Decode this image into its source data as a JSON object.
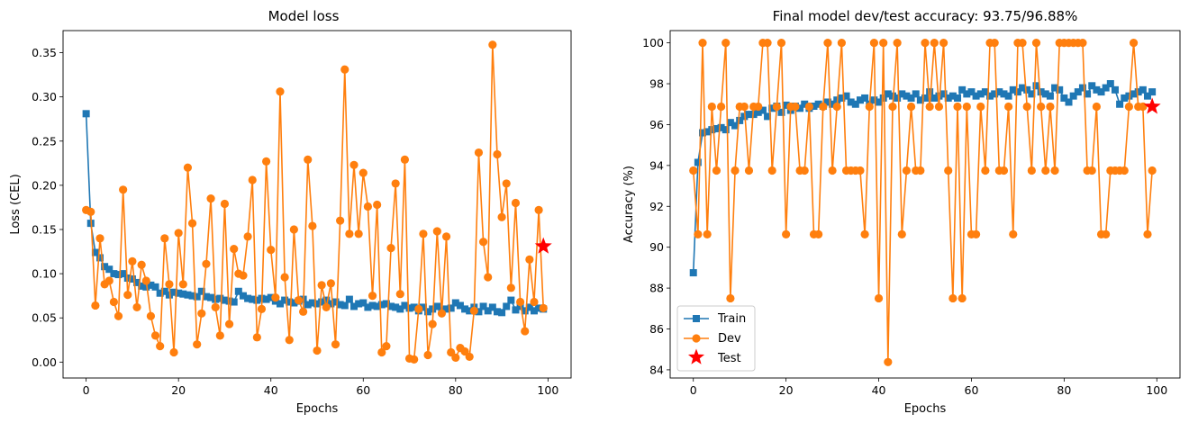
{
  "chart_data": [
    {
      "type": "line",
      "title": "Model loss",
      "xlabel": "Epochs",
      "ylabel": "Loss (CEL)",
      "xlim": [
        -5,
        105
      ],
      "ylim": [
        -0.018,
        0.375
      ],
      "xticks": [
        0,
        20,
        40,
        60,
        80,
        100
      ],
      "yticks": [
        0.0,
        0.05,
        0.1,
        0.15,
        0.2,
        0.25,
        0.3,
        0.35
      ],
      "ytick_labels": [
        "0.00",
        "0.05",
        "0.10",
        "0.15",
        "0.20",
        "0.25",
        "0.30",
        "0.35"
      ],
      "grid": false,
      "series": [
        {
          "marker": "square",
          "color": "#1f77b4",
          "x": [
            0,
            1,
            2,
            3,
            4,
            5,
            6,
            7,
            8,
            9,
            10,
            11,
            12,
            13,
            14,
            15,
            16,
            17,
            18,
            19,
            20,
            21,
            22,
            23,
            24,
            25,
            26,
            27,
            28,
            29,
            30,
            31,
            32,
            33,
            34,
            35,
            36,
            37,
            38,
            39,
            40,
            41,
            42,
            43,
            44,
            45,
            46,
            47,
            48,
            49,
            50,
            51,
            52,
            53,
            54,
            55,
            56,
            57,
            58,
            59,
            60,
            61,
            62,
            63,
            64,
            65,
            66,
            67,
            68,
            69,
            70,
            71,
            72,
            73,
            74,
            75,
            76,
            77,
            78,
            79,
            80,
            81,
            82,
            83,
            84,
            85,
            86,
            87,
            88,
            89,
            90,
            91,
            92,
            93,
            94,
            95,
            96,
            97,
            98,
            99
          ],
          "y": [
            0.281,
            0.157,
            0.124,
            0.118,
            0.108,
            0.105,
            0.1,
            0.099,
            0.1,
            0.095,
            0.094,
            0.09,
            0.086,
            0.085,
            0.087,
            0.085,
            0.078,
            0.08,
            0.076,
            0.079,
            0.078,
            0.077,
            0.076,
            0.075,
            0.074,
            0.08,
            0.074,
            0.073,
            0.071,
            0.072,
            0.07,
            0.069,
            0.068,
            0.08,
            0.075,
            0.072,
            0.071,
            0.07,
            0.072,
            0.071,
            0.073,
            0.069,
            0.066,
            0.07,
            0.068,
            0.067,
            0.069,
            0.071,
            0.065,
            0.067,
            0.066,
            0.068,
            0.07,
            0.066,
            0.068,
            0.065,
            0.064,
            0.071,
            0.063,
            0.066,
            0.067,
            0.062,
            0.064,
            0.063,
            0.065,
            0.066,
            0.063,
            0.062,
            0.06,
            0.064,
            0.061,
            0.062,
            0.058,
            0.062,
            0.057,
            0.06,
            0.063,
            0.059,
            0.06,
            0.061,
            0.067,
            0.064,
            0.06,
            0.058,
            0.062,
            0.057,
            0.063,
            0.058,
            0.062,
            0.057,
            0.056,
            0.063,
            0.07,
            0.059,
            0.063,
            0.058,
            0.062,
            0.058,
            0.061,
            0.06
          ]
        },
        {
          "marker": "circle",
          "color": "#ff7f0e",
          "x": [
            0,
            1,
            2,
            3,
            4,
            5,
            6,
            7,
            8,
            9,
            10,
            11,
            12,
            13,
            14,
            15,
            16,
            17,
            18,
            19,
            20,
            21,
            22,
            23,
            24,
            25,
            26,
            27,
            28,
            29,
            30,
            31,
            32,
            33,
            34,
            35,
            36,
            37,
            38,
            39,
            40,
            41,
            42,
            43,
            44,
            45,
            46,
            47,
            48,
            49,
            50,
            51,
            52,
            53,
            54,
            55,
            56,
            57,
            58,
            59,
            60,
            61,
            62,
            63,
            64,
            65,
            66,
            67,
            68,
            69,
            70,
            71,
            72,
            73,
            74,
            75,
            76,
            77,
            78,
            79,
            80,
            81,
            82,
            83,
            84,
            85,
            86,
            87,
            88,
            89,
            90,
            91,
            92,
            93,
            94,
            95,
            96,
            97,
            98,
            99
          ],
          "y": [
            0.172,
            0.17,
            0.064,
            0.14,
            0.088,
            0.092,
            0.068,
            0.052,
            0.195,
            0.076,
            0.114,
            0.062,
            0.11,
            0.092,
            0.052,
            0.03,
            0.018,
            0.14,
            0.088,
            0.011,
            0.146,
            0.088,
            0.22,
            0.157,
            0.02,
            0.055,
            0.111,
            0.185,
            0.062,
            0.03,
            0.179,
            0.043,
            0.128,
            0.1,
            0.098,
            0.142,
            0.206,
            0.028,
            0.06,
            0.227,
            0.127,
            0.073,
            0.306,
            0.096,
            0.025,
            0.15,
            0.07,
            0.057,
            0.229,
            0.154,
            0.013,
            0.087,
            0.062,
            0.089,
            0.02,
            0.16,
            0.331,
            0.145,
            0.223,
            0.145,
            0.214,
            0.176,
            0.075,
            0.178,
            0.011,
            0.018,
            0.129,
            0.202,
            0.077,
            0.229,
            0.004,
            0.003,
            0.06,
            0.145,
            0.008,
            0.043,
            0.148,
            0.055,
            0.142,
            0.011,
            0.005,
            0.016,
            0.012,
            0.006,
            0.058,
            0.237,
            0.136,
            0.096,
            0.359,
            0.235,
            0.164,
            0.202,
            0.084,
            0.18,
            0.068,
            0.035,
            0.116,
            0.068,
            0.172,
            0.061
          ]
        }
      ],
      "test_marker": {
        "marker": "star",
        "color": "#ff0000",
        "x": 99,
        "y": 0.131
      }
    },
    {
      "type": "line",
      "title": "Final model dev/test accuracy: 93.75/96.88%",
      "xlabel": "Epochs",
      "ylabel": "Accuracy (%)",
      "xlim": [
        -5,
        105
      ],
      "ylim": [
        83.6,
        100.6
      ],
      "xticks": [
        0,
        20,
        40,
        60,
        80,
        100
      ],
      "yticks": [
        84,
        86,
        88,
        90,
        92,
        94,
        96,
        98,
        100
      ],
      "grid": false,
      "legend_position": "lower-left",
      "legend": [
        "Train",
        "Dev",
        "Test"
      ],
      "series": [
        {
          "name": "Train",
          "marker": "square",
          "color": "#1f77b4",
          "x": [
            0,
            1,
            2,
            3,
            4,
            5,
            6,
            7,
            8,
            9,
            10,
            11,
            12,
            13,
            14,
            15,
            16,
            17,
            18,
            19,
            20,
            21,
            22,
            23,
            24,
            25,
            26,
            27,
            28,
            29,
            30,
            31,
            32,
            33,
            34,
            35,
            36,
            37,
            38,
            39,
            40,
            41,
            42,
            43,
            44,
            45,
            46,
            47,
            48,
            49,
            50,
            51,
            52,
            53,
            54,
            55,
            56,
            57,
            58,
            59,
            60,
            61,
            62,
            63,
            64,
            65,
            66,
            67,
            68,
            69,
            70,
            71,
            72,
            73,
            74,
            75,
            76,
            77,
            78,
            79,
            80,
            81,
            82,
            83,
            84,
            85,
            86,
            87,
            88,
            89,
            90,
            91,
            92,
            93,
            94,
            95,
            96,
            97,
            98,
            99
          ],
          "y": [
            88.75,
            94.15,
            95.6,
            95.65,
            95.75,
            95.8,
            95.85,
            95.75,
            96.1,
            95.95,
            96.2,
            96.4,
            96.5,
            96.5,
            96.6,
            96.7,
            96.4,
            96.8,
            96.9,
            96.6,
            96.95,
            96.7,
            96.9,
            96.8,
            97.0,
            96.8,
            96.9,
            97.0,
            96.9,
            97.1,
            97.0,
            97.2,
            97.3,
            97.4,
            97.1,
            97.0,
            97.2,
            97.3,
            97.0,
            97.2,
            97.1,
            97.3,
            97.5,
            97.4,
            97.3,
            97.5,
            97.4,
            97.3,
            97.5,
            97.2,
            97.3,
            97.6,
            97.3,
            97.4,
            97.5,
            97.3,
            97.4,
            97.3,
            97.7,
            97.5,
            97.6,
            97.4,
            97.5,
            97.6,
            97.4,
            97.5,
            97.6,
            97.5,
            97.4,
            97.7,
            97.6,
            97.8,
            97.7,
            97.5,
            97.9,
            97.6,
            97.5,
            97.4,
            97.8,
            97.7,
            97.3,
            97.1,
            97.4,
            97.6,
            97.8,
            97.5,
            97.9,
            97.7,
            97.6,
            97.8,
            98.0,
            97.7,
            97.0,
            97.3,
            97.4,
            97.5,
            97.6,
            97.7,
            97.4,
            97.6
          ]
        },
        {
          "name": "Dev",
          "marker": "circle",
          "color": "#ff7f0e",
          "x": [
            0,
            1,
            2,
            3,
            4,
            5,
            6,
            7,
            8,
            9,
            10,
            11,
            12,
            13,
            14,
            15,
            16,
            17,
            18,
            19,
            20,
            21,
            22,
            23,
            24,
            25,
            26,
            27,
            28,
            29,
            30,
            31,
            32,
            33,
            34,
            35,
            36,
            37,
            38,
            39,
            40,
            41,
            42,
            43,
            44,
            45,
            46,
            47,
            48,
            49,
            50,
            51,
            52,
            53,
            54,
            55,
            56,
            57,
            58,
            59,
            60,
            61,
            62,
            63,
            64,
            65,
            66,
            67,
            68,
            69,
            70,
            71,
            72,
            73,
            74,
            75,
            76,
            77,
            78,
            79,
            80,
            81,
            82,
            83,
            84,
            85,
            86,
            87,
            88,
            89,
            90,
            91,
            92,
            93,
            94,
            95,
            96,
            97,
            98,
            99
          ],
          "y": [
            93.75,
            90.63,
            100,
            90.63,
            96.88,
            93.75,
            96.88,
            100,
            87.5,
            93.75,
            96.88,
            96.88,
            93.75,
            96.88,
            96.88,
            100,
            100,
            93.75,
            96.88,
            100,
            90.63,
            96.88,
            96.88,
            93.75,
            93.75,
            96.88,
            90.63,
            90.63,
            96.88,
            100,
            93.75,
            96.88,
            100,
            93.75,
            93.75,
            93.75,
            93.75,
            90.63,
            96.88,
            100,
            87.5,
            100,
            84.38,
            96.88,
            100,
            90.63,
            93.75,
            96.88,
            93.75,
            93.75,
            100,
            96.88,
            100,
            96.88,
            100,
            93.75,
            87.5,
            96.88,
            87.5,
            96.88,
            90.63,
            90.63,
            96.88,
            93.75,
            100,
            100,
            93.75,
            93.75,
            96.88,
            90.63,
            100,
            100,
            96.88,
            93.75,
            100,
            96.88,
            93.75,
            96.88,
            93.75,
            100,
            100,
            100,
            100,
            100,
            100,
            93.75,
            93.75,
            96.88,
            90.63,
            90.63,
            93.75,
            93.75,
            93.75,
            93.75,
            96.88,
            100,
            96.88,
            96.88,
            90.63,
            93.75
          ]
        }
      ],
      "test_marker": {
        "name": "Test",
        "marker": "star",
        "color": "#ff0000",
        "x": 99,
        "y": 96.88
      }
    }
  ]
}
